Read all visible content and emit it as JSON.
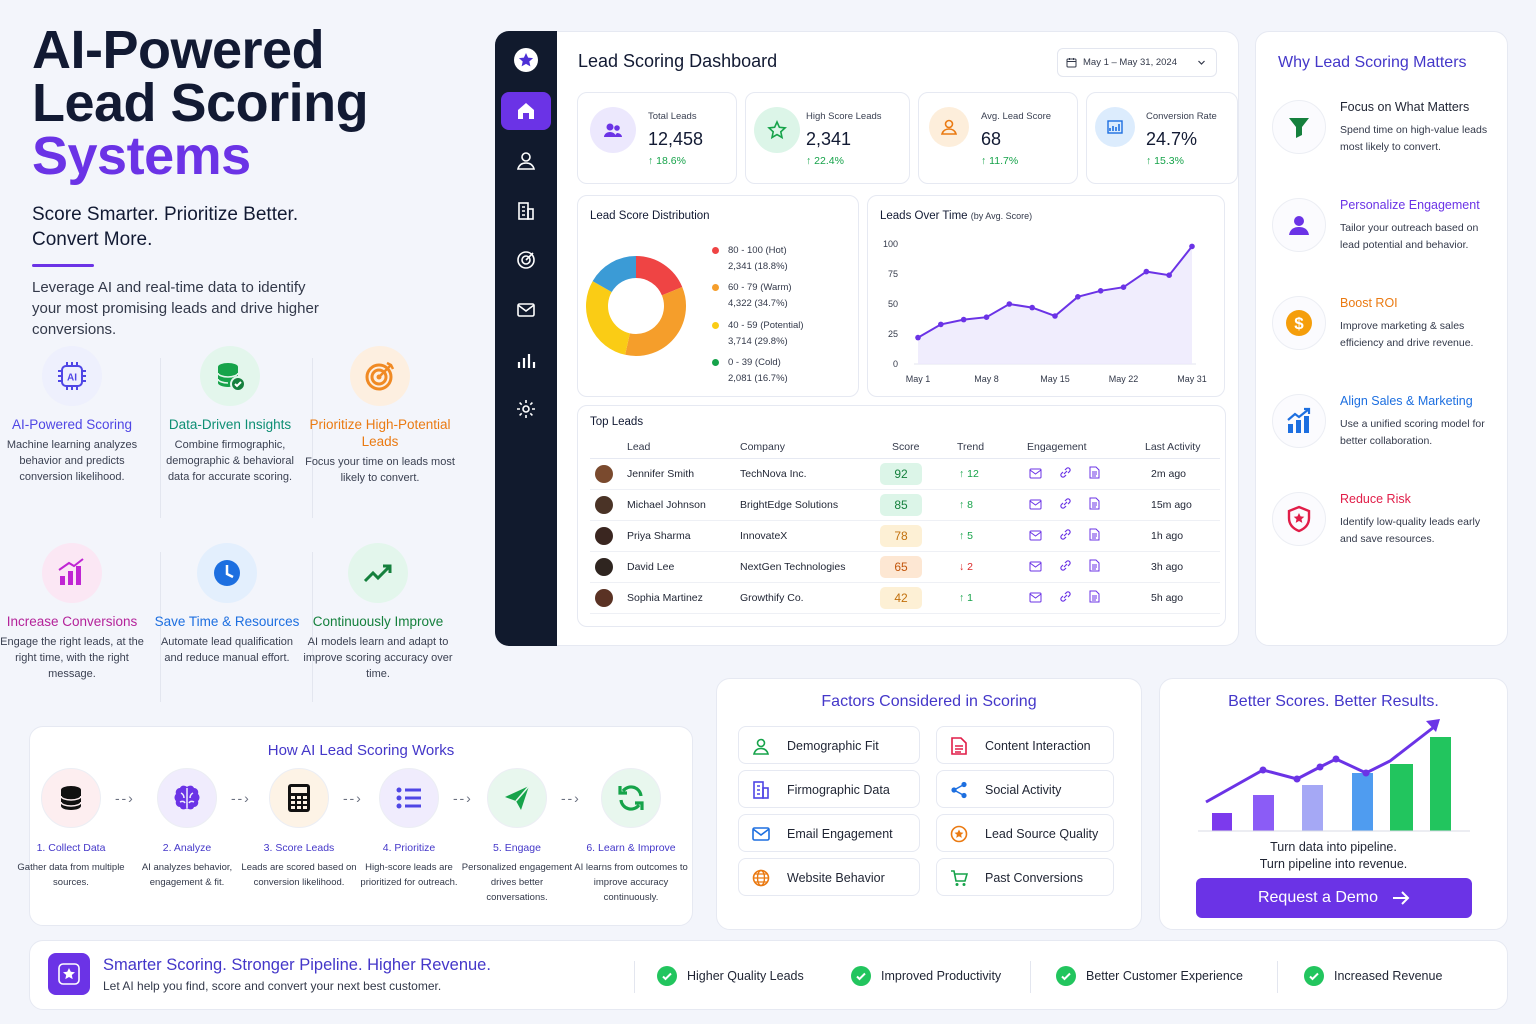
{
  "hero": {
    "title_line1": "AI-Powered",
    "title_line2": "Lead Scoring",
    "title_line3": "Systems",
    "subtitle": "Score Smarter. Prioritize Better. Convert More.",
    "description": "Leverage AI and real-time data to identify your most promising leads and drive higher conversions."
  },
  "features": [
    {
      "icon": "ai-chip-icon",
      "title": "AI-Powered Scoring",
      "desc": "Machine learning analyzes behavior and predicts conversion likelihood.",
      "color": "#4f46e5"
    },
    {
      "icon": "database-check-icon",
      "title": "Data-Driven Insights",
      "desc": "Combine firmographic, demographic & behavioral data for accurate scoring.",
      "color": "#0e8f74"
    },
    {
      "icon": "target-icon",
      "title": "Prioritize High-Potential Leads",
      "desc": "Focus your time on leads most likely to convert.",
      "color": "#ea7a12"
    },
    {
      "icon": "bar-growth-icon",
      "title": "Increase Conversions",
      "desc": "Engage the right leads, at the right time, with the right message.",
      "color": "#b4239a"
    },
    {
      "icon": "clock-icon",
      "title": "Save Time & Resources",
      "desc": "Automate lead qualification and reduce manual effort.",
      "color": "#1d6fe0"
    },
    {
      "icon": "trend-up-icon",
      "title": "Continuously Improve",
      "desc": "AI models learn and adapt to improve scoring accuracy over time.",
      "color": "#15803d"
    }
  ],
  "dashboard": {
    "title": "Lead Scoring Dashboard",
    "date_range": "May 1 – May 31, 2024",
    "kpis": [
      {
        "label": "Total Leads",
        "value": "12,458",
        "change": "18.6%",
        "icon": "users-icon",
        "bg": "#ece8fd",
        "fg": "#6b33e6"
      },
      {
        "label": "High Score Leads",
        "value": "2,341",
        "change": "22.4%",
        "icon": "star-icon",
        "bg": "#dcf5e8",
        "fg": "#16a34a"
      },
      {
        "label": "Avg. Lead Score",
        "value": "68",
        "change": "11.7%",
        "icon": "user-icon",
        "bg": "#fdeedb",
        "fg": "#ea7a12"
      },
      {
        "label": "Conversion Rate",
        "value": "24.7%",
        "change": "15.3%",
        "icon": "chart-icon",
        "bg": "#dcecfd",
        "fg": "#1d6fe0"
      }
    ],
    "distribution": {
      "title": "Lead Score Distribution",
      "segments": [
        {
          "label": "80 - 100 (Hot)",
          "detail": "2,341 (18.8%)",
          "pct": 18.8,
          "color": "#ef4444"
        },
        {
          "label": "60 - 79 (Warm)",
          "detail": "4,322 (34.7%)",
          "pct": 34.7,
          "color": "#f59e2b"
        },
        {
          "label": "40 - 59 (Potential)",
          "detail": "3,714 (29.8%)",
          "pct": 29.8,
          "color": "#facc15"
        },
        {
          "label": "0 - 39 (Cold)",
          "detail": "2,081 (16.7%)",
          "pct": 16.7,
          "color": "#3b9bd6"
        }
      ]
    },
    "leads_over_time": {
      "title": "Leads Over Time",
      "title_note": "(by Avg. Score)",
      "y_ticks": [
        "100",
        "75",
        "50",
        "25",
        "0"
      ],
      "x_ticks": [
        "May 1",
        "May 8",
        "May 15",
        "May 22",
        "May 31"
      ]
    },
    "top_leads": {
      "title": "Top Leads",
      "columns": [
        "Lead",
        "Company",
        "Score",
        "Trend",
        "Engagement",
        "Last Activity"
      ],
      "rows": [
        {
          "lead": "Jennifer Smith",
          "company": "TechNova Inc.",
          "score": "92",
          "trend": "↑ 12",
          "up": true,
          "last": "2m ago",
          "sbg": "#dcf5e8",
          "sfg": "#15803d"
        },
        {
          "lead": "Michael Johnson",
          "company": "BrightEdge Solutions",
          "score": "85",
          "trend": "↑ 8",
          "up": true,
          "last": "15m ago",
          "sbg": "#dcf5e8",
          "sfg": "#15803d"
        },
        {
          "lead": "Priya Sharma",
          "company": "InnovateX",
          "score": "78",
          "trend": "↑ 5",
          "up": true,
          "last": "1h ago",
          "sbg": "#fdf0d5",
          "sfg": "#c2700c"
        },
        {
          "lead": "David Lee",
          "company": "NextGen Technologies",
          "score": "65",
          "trend": "↓ 2",
          "up": false,
          "last": "3h ago",
          "sbg": "#fde7d3",
          "sfg": "#c2560c"
        },
        {
          "lead": "Sophia Martinez",
          "company": "Growthify Co.",
          "score": "42",
          "trend": "↑ 1",
          "up": true,
          "last": "5h ago",
          "sbg": "#fdf0d5",
          "sfg": "#c2700c"
        }
      ]
    }
  },
  "chart_data": {
    "type": "line",
    "title": "Leads Over Time",
    "x": [
      "May 1",
      "May 4",
      "May 6",
      "May 8",
      "May 11",
      "May 13",
      "May 15",
      "May 18",
      "May 20",
      "May 22",
      "May 25",
      "May 27",
      "May 31"
    ],
    "series": [
      {
        "values": [
          22,
          33,
          37,
          39,
          50,
          47,
          40,
          56,
          61,
          64,
          77,
          74,
          98
        ]
      }
    ],
    "ylim": [
      0,
      100
    ],
    "x_ticks": [
      "May 1",
      "May 8",
      "May 15",
      "May 22",
      "May 31"
    ],
    "y_ticks": [
      0,
      25,
      50,
      75,
      100
    ],
    "grid": false
  },
  "why": {
    "title": "Why Lead Scoring Matters",
    "items": [
      {
        "icon": "funnel-icon",
        "title": "Focus on What Matters",
        "desc": "Spend time on high-value leads most likely to convert.",
        "color": "#15803d",
        "tcolor": "#1f2433"
      },
      {
        "icon": "person-icon",
        "title": "Personalize Engagement",
        "desc": "Tailor your outreach based on lead potential and behavior.",
        "color": "#6b33e6",
        "tcolor": "#6b33e6"
      },
      {
        "icon": "dollar-icon",
        "title": "Boost ROI",
        "desc": "Improve marketing & sales efficiency and drive revenue.",
        "color": "#f59e0b",
        "tcolor": "#ea7a12"
      },
      {
        "icon": "growth-chart-icon",
        "title": "Align Sales & Marketing",
        "desc": "Use a unified scoring model for better collaboration.",
        "color": "#1d6fe0",
        "tcolor": "#1d6fe0"
      },
      {
        "icon": "shield-icon",
        "title": "Reduce Risk",
        "desc": "Identify low-quality leads early and save resources.",
        "color": "#e11d48",
        "tcolor": "#e11d48"
      }
    ]
  },
  "how": {
    "title": "How AI Lead Scoring Works",
    "steps": [
      {
        "icon": "database-icon",
        "title": "1. Collect Data",
        "desc": "Gather data from multiple sources.",
        "bg": "#fdeef0"
      },
      {
        "icon": "brain-icon",
        "title": "2. Analyze",
        "desc": "AI analyzes behavior, engagement & fit.",
        "bg": "#f0ecfd"
      },
      {
        "icon": "calculator-icon",
        "title": "3. Score Leads",
        "desc": "Leads are scored based on conversion likelihood.",
        "bg": "#fdf3e6"
      },
      {
        "icon": "list-icon",
        "title": "4. Prioritize",
        "desc": "High-score leads are prioritized for outreach.",
        "bg": "#f0ecfd"
      },
      {
        "icon": "send-icon",
        "title": "5. Engage",
        "desc": "Personalized engagement drives better conversations.",
        "bg": "#e8f7ee"
      },
      {
        "icon": "refresh-icon",
        "title": "6. Learn & Improve",
        "desc": "AI learns from outcomes to improve accuracy continuously.",
        "bg": "#e8f7ee"
      }
    ]
  },
  "factors": {
    "title": "Factors Considered in Scoring",
    "items": [
      {
        "icon": "person-outline-icon",
        "label": "Demographic Fit",
        "color": "#16a34a"
      },
      {
        "icon": "document-icon",
        "label": "Content Interaction",
        "color": "#e11d48"
      },
      {
        "icon": "building-icon",
        "label": "Firmographic Data",
        "color": "#4f46e5"
      },
      {
        "icon": "share-icon",
        "label": "Social Activity",
        "color": "#1d6fe0"
      },
      {
        "icon": "mail-icon",
        "label": "Email Engagement",
        "color": "#1d6fe0"
      },
      {
        "icon": "badge-icon",
        "label": "Lead Source Quality",
        "color": "#ea7a12"
      },
      {
        "icon": "globe-icon",
        "label": "Website Behavior",
        "color": "#ea7a12"
      },
      {
        "icon": "cart-icon",
        "label": "Past Conversions",
        "color": "#16a34a"
      }
    ]
  },
  "results": {
    "title": "Better Scores. Better Results.",
    "line1": "Turn data into pipeline.",
    "line2": "Turn pipeline into revenue.",
    "cta": "Request a Demo"
  },
  "footer": {
    "title": "Smarter Scoring. Stronger Pipeline. Higher Revenue.",
    "subtitle": "Let AI help you find, score and convert your next best customer.",
    "checks": [
      "Higher Quality Leads",
      "Improved Productivity",
      "Better Customer Experience",
      "Increased Revenue"
    ]
  }
}
